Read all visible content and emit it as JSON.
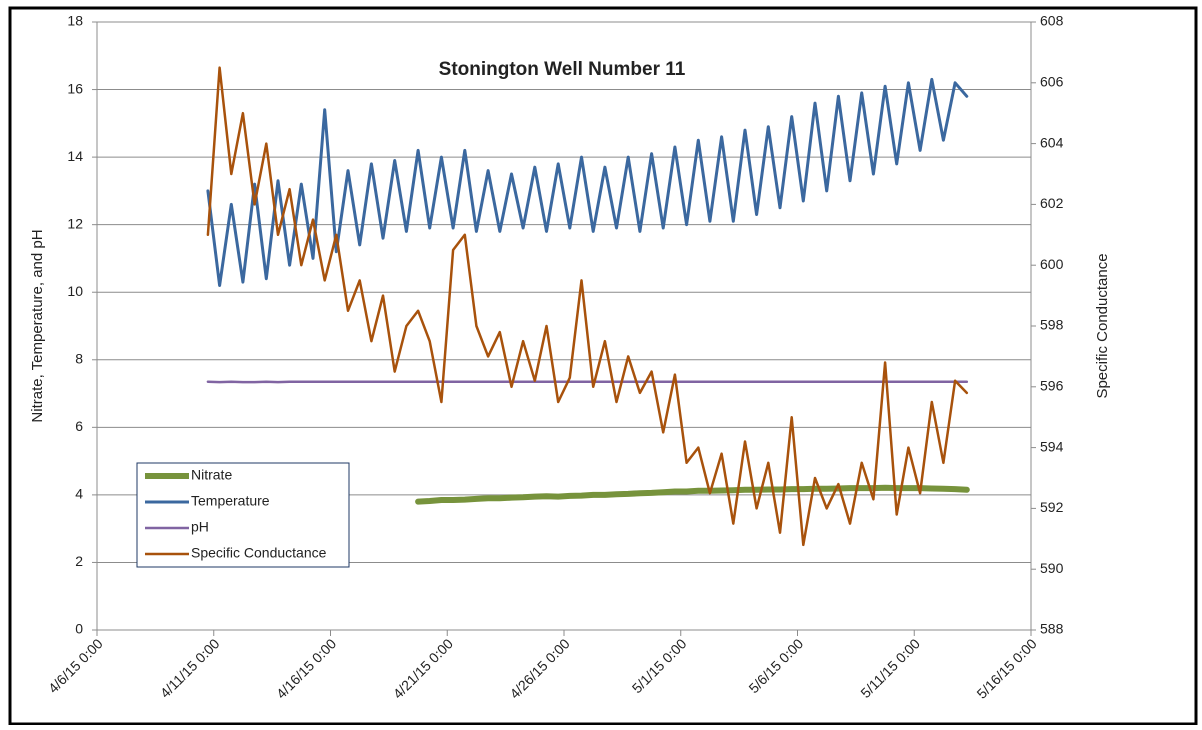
{
  "chart_data": {
    "type": "line",
    "title": "Stonington Well Number 11",
    "y_label": "Nitrate, Temperature, and pH",
    "y2_label": "Specific Conductance",
    "x": [
      "4/10/15 18:00",
      "4/11/15 6:00",
      "4/11/15 18:00",
      "4/12/15 6:00",
      "4/12/15 18:00",
      "4/13/15 6:00",
      "4/13/15 18:00",
      "4/14/15 6:00",
      "4/14/15 18:00",
      "4/15/15 6:00",
      "4/15/15 18:00",
      "4/16/15 6:00",
      "4/16/15 18:00",
      "4/17/15 6:00",
      "4/17/15 18:00",
      "4/18/15 6:00",
      "4/18/15 18:00",
      "4/19/15 6:00",
      "4/19/15 18:00",
      "4/20/15 6:00",
      "4/20/15 18:00",
      "4/21/15 6:00",
      "4/21/15 18:00",
      "4/22/15 6:00",
      "4/22/15 18:00",
      "4/23/15 6:00",
      "4/23/15 18:00",
      "4/24/15 6:00",
      "4/24/15 18:00",
      "4/25/15 6:00",
      "4/25/15 18:00",
      "4/26/15 6:00",
      "4/26/15 18:00",
      "4/27/15 6:00",
      "4/27/15 18:00",
      "4/28/15 6:00",
      "4/28/15 18:00",
      "4/29/15 6:00",
      "4/29/15 18:00",
      "4/30/15 6:00",
      "4/30/15 18:00",
      "5/1/15 6:00",
      "5/1/15 18:00",
      "5/2/15 6:00",
      "5/2/15 18:00",
      "5/3/15 6:00",
      "5/3/15 18:00",
      "5/4/15 6:00",
      "5/4/15 18:00",
      "5/5/15 6:00",
      "5/5/15 18:00",
      "5/6/15 6:00",
      "5/6/15 18:00",
      "5/7/15 6:00",
      "5/7/15 18:00",
      "5/8/15 6:00",
      "5/8/15 18:00",
      "5/9/15 6:00",
      "5/9/15 18:00",
      "5/10/15 6:00",
      "5/10/15 18:00",
      "5/11/15 6:00",
      "5/11/15 18:00",
      "5/12/15 6:00",
      "5/12/15 18:00",
      "5/13/15 6:00"
    ],
    "series": [
      {
        "name": "Nitrate",
        "color": "#77933c",
        "width": 6,
        "values": [
          null,
          null,
          null,
          null,
          null,
          null,
          null,
          null,
          null,
          null,
          null,
          null,
          null,
          null,
          null,
          null,
          null,
          null,
          3.8,
          3.82,
          3.85,
          3.85,
          3.86,
          3.88,
          3.9,
          3.9,
          3.92,
          3.93,
          3.95,
          3.96,
          3.95,
          3.97,
          3.98,
          4.0,
          4.0,
          4.02,
          4.03,
          4.05,
          4.06,
          4.08,
          4.1,
          4.1,
          4.12,
          4.12,
          4.13,
          4.14,
          4.15,
          4.15,
          4.16,
          4.16,
          4.17,
          4.17,
          4.18,
          4.18,
          4.19,
          4.2,
          4.2,
          4.2,
          4.21,
          4.2,
          4.2,
          4.2,
          4.19,
          4.18,
          4.17,
          4.15
        ]
      },
      {
        "name": "Temperature",
        "color": "#3b689f",
        "width": 3,
        "values": [
          13.0,
          10.2,
          12.6,
          10.3,
          13.2,
          10.4,
          13.3,
          10.8,
          13.2,
          11.0,
          15.4,
          11.2,
          13.6,
          11.4,
          13.8,
          11.6,
          13.9,
          11.8,
          14.2,
          11.9,
          14.0,
          11.9,
          14.2,
          11.8,
          13.6,
          11.8,
          13.5,
          11.9,
          13.7,
          11.8,
          13.8,
          11.9,
          14.0,
          11.8,
          13.7,
          11.9,
          14.0,
          11.8,
          14.1,
          11.9,
          14.3,
          12.0,
          14.5,
          12.1,
          14.6,
          12.1,
          14.8,
          12.3,
          14.9,
          12.5,
          15.2,
          12.7,
          15.6,
          13.0,
          15.8,
          13.3,
          15.9,
          13.5,
          16.1,
          13.8,
          16.2,
          14.2,
          16.3,
          14.5,
          16.2,
          15.8
        ]
      },
      {
        "name": "pH",
        "color": "#8064a2",
        "width": 2.5,
        "values": [
          7.35,
          7.34,
          7.35,
          7.34,
          7.34,
          7.35,
          7.34,
          7.35,
          7.35,
          7.35,
          7.35,
          7.35,
          7.35,
          7.35,
          7.35,
          7.35,
          7.35,
          7.35,
          7.35,
          7.35,
          7.35,
          7.35,
          7.35,
          7.35,
          7.35,
          7.35,
          7.35,
          7.35,
          7.35,
          7.35,
          7.35,
          7.35,
          7.35,
          7.35,
          7.35,
          7.35,
          7.35,
          7.35,
          7.35,
          7.35,
          7.35,
          7.35,
          7.35,
          7.35,
          7.35,
          7.35,
          7.35,
          7.35,
          7.35,
          7.35,
          7.35,
          7.35,
          7.35,
          7.35,
          7.35,
          7.35,
          7.35,
          7.35,
          7.35,
          7.35,
          7.35,
          7.35,
          7.35,
          7.35,
          7.35,
          7.35
        ]
      },
      {
        "name": "Specific Conductance",
        "color": "#a8520c",
        "width": 2.5,
        "axis": "y2",
        "values": [
          601,
          606.5,
          603,
          605,
          602,
          604,
          601,
          602.5,
          600,
          601.5,
          599.5,
          601,
          598.5,
          599.5,
          597.5,
          599,
          596.5,
          598,
          598.5,
          597.5,
          595.5,
          600.5,
          601,
          598,
          597,
          597.8,
          596,
          597.5,
          596.2,
          598,
          595.5,
          596.3,
          599.5,
          596,
          597.5,
          595.5,
          597,
          595.8,
          596.5,
          594.5,
          596.4,
          593.5,
          594,
          592.5,
          593.8,
          591.5,
          594.2,
          592,
          593.5,
          591.2,
          595,
          590.8,
          593,
          592,
          592.8,
          591.5,
          593.5,
          592.3,
          596.8,
          591.8,
          594,
          592.5,
          595.5,
          593.5,
          596.2,
          595.8
        ]
      }
    ],
    "xlim": [
      "4/6/15 0:00",
      "5/16/15 0:00"
    ],
    "xticks": [
      "4/6/15 0:00",
      "4/11/15 0:00",
      "4/16/15 0:00",
      "4/21/15 0:00",
      "4/26/15 0:00",
      "5/1/15 0:00",
      "5/6/15 0:00",
      "5/11/15 0:00",
      "5/16/15 0:00"
    ],
    "ylim": [
      0,
      18
    ],
    "yticks": [
      0,
      2,
      4,
      6,
      8,
      10,
      12,
      14,
      16,
      18
    ],
    "y2lim": [
      588,
      608
    ],
    "y2ticks": [
      588,
      590,
      592,
      594,
      596,
      598,
      600,
      602,
      604,
      606,
      608
    ],
    "grid": true,
    "legend": "lower left"
  }
}
